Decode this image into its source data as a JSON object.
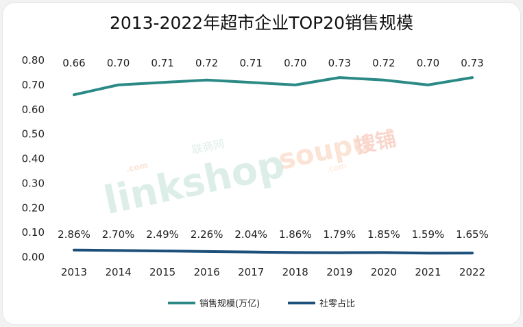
{
  "chart_data": {
    "type": "line",
    "title": "2013-2022年超市企业TOP20销售规模",
    "xlabel": "",
    "ylabel": "",
    "ylim": [
      0,
      0.8
    ],
    "yticks": [
      "0.00",
      "0.10",
      "0.20",
      "0.30",
      "0.40",
      "0.50",
      "0.60",
      "0.70",
      "0.80"
    ],
    "categories": [
      "2013",
      "2014",
      "2015",
      "2016",
      "2017",
      "2018",
      "2019",
      "2020",
      "2021",
      "2022"
    ],
    "grid": false,
    "legend": "bottom",
    "series": [
      {
        "name": "销售规模(万亿)",
        "color": "#2b8a86",
        "values": [
          0.66,
          0.7,
          0.71,
          0.72,
          0.71,
          0.7,
          0.73,
          0.72,
          0.7,
          0.73
        ],
        "labels": [
          "0.66",
          "0.70",
          "0.71",
          "0.72",
          "0.71",
          "0.70",
          "0.73",
          "0.72",
          "0.70",
          "0.73"
        ]
      },
      {
        "name": "社零占比",
        "color": "#1c4f7a",
        "values": [
          0.0286,
          0.027,
          0.0249,
          0.0226,
          0.0204,
          0.0186,
          0.0179,
          0.0185,
          0.0159,
          0.0165
        ],
        "labels": [
          "2.86%",
          "2.70%",
          "2.49%",
          "2.26%",
          "2.04%",
          "1.86%",
          "1.79%",
          "1.85%",
          "1.59%",
          "1.65%"
        ]
      }
    ],
    "watermarks": [
      "linkshop",
      ".com",
      "联商网",
      "soupu",
      ".com",
      "搜铺"
    ]
  }
}
